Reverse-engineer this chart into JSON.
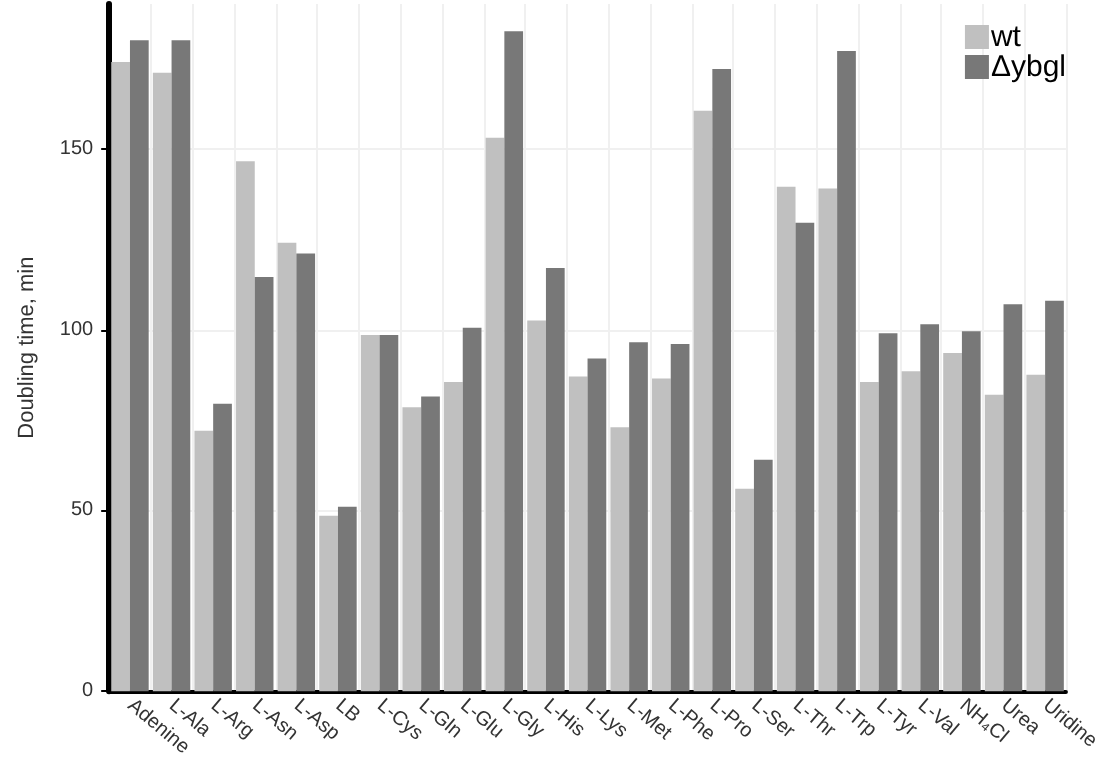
{
  "chart_data": {
    "type": "bar",
    "ylabel": "Doubling time, min",
    "categories": [
      "Adenine",
      "L-Ala",
      "L-Arg",
      "L-Asn",
      "L-Asp",
      "LB",
      "L-Cys",
      "L-Gln",
      "L-Glu",
      "L-Gly",
      "L-His",
      "L-Lys",
      "L-Met",
      "L-Phe",
      "L-Pro",
      "L-Ser",
      "L-Thr",
      "L-Trp",
      "L-Tyr",
      "L-Val",
      "NH₄Cl",
      "Urea",
      "Uridine"
    ],
    "series": [
      {
        "name": "wt",
        "color": "#c0c0c0",
        "values": [
          174,
          171,
          72,
          146.5,
          124,
          48.5,
          98.5,
          78.5,
          85.5,
          153,
          102.5,
          87,
          73,
          86.5,
          160.5,
          56,
          139.5,
          139,
          85.5,
          88.5,
          93.5,
          82,
          87.5
        ]
      },
      {
        "name": "Δybgl",
        "color": "#787878",
        "values": [
          180,
          180,
          79.5,
          114.5,
          121,
          51,
          98.5,
          81.5,
          100.5,
          182.5,
          117,
          92,
          96.5,
          96,
          172,
          64,
          129.5,
          177,
          99,
          101.5,
          99.5,
          107,
          108
        ]
      }
    ],
    "ylim": [
      0,
      190
    ],
    "yticks": [
      0,
      50,
      100,
      150
    ],
    "grid": true,
    "legend": "top right"
  }
}
